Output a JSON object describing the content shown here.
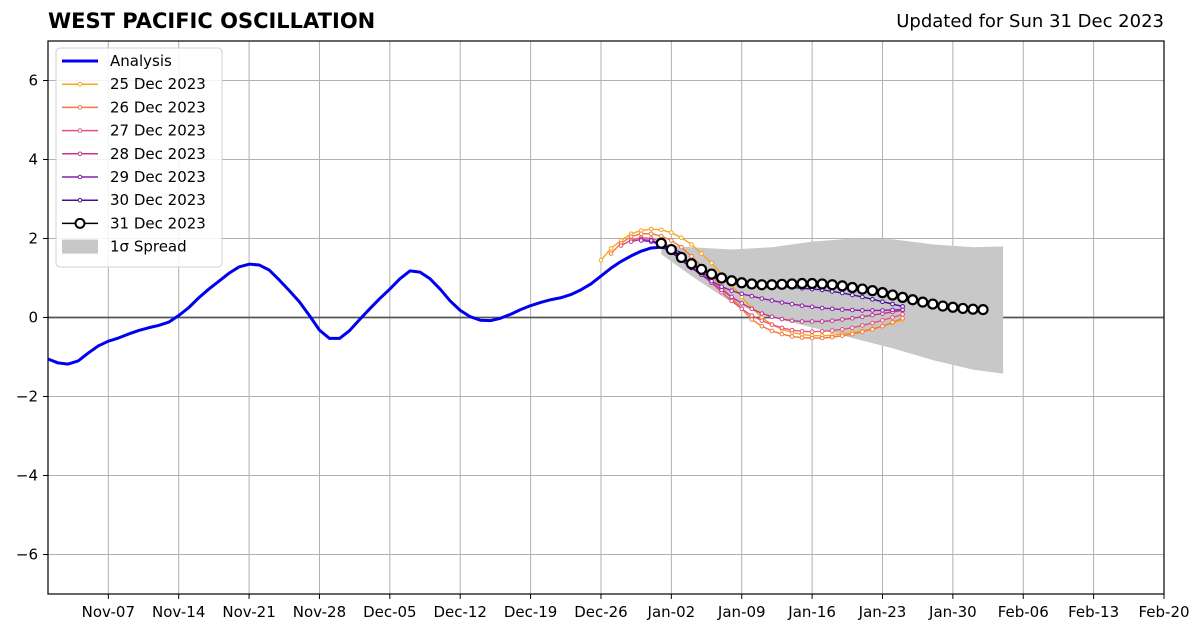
{
  "page": {
    "title": "WEST PACIFIC OSCILLATION",
    "updated": "Updated for Sun 31 Dec 2023"
  },
  "chart_data": {
    "type": "line",
    "title": "WEST PACIFIC OSCILLATION",
    "xlabel": "",
    "ylabel": "",
    "x_axis": {
      "start_date": "2023-11-01",
      "end_date": "2024-02-20",
      "tick_labels": [
        "Nov-07",
        "Nov-14",
        "Nov-21",
        "Nov-28",
        "Dec-05",
        "Dec-12",
        "Dec-19",
        "Dec-26",
        "Jan-02",
        "Jan-09",
        "Jan-16",
        "Jan-23",
        "Jan-30",
        "Feb-06",
        "Feb-13",
        "Feb-20"
      ],
      "tick_dates": [
        "2023-11-07",
        "2023-11-14",
        "2023-11-21",
        "2023-11-28",
        "2023-12-05",
        "2023-12-12",
        "2023-12-19",
        "2023-12-26",
        "2024-01-02",
        "2024-01-09",
        "2024-01-16",
        "2024-01-23",
        "2024-01-30",
        "2024-02-06",
        "2024-02-13",
        "2024-02-20"
      ]
    },
    "ylim": [
      -7,
      7
    ],
    "y_ticks": [
      -6,
      -4,
      -2,
      0,
      2,
      4,
      6
    ],
    "y_tick_labels": [
      "−6",
      "−4",
      "−2",
      "0",
      "2",
      "4",
      "6"
    ],
    "grid": true,
    "legend_position": "top-left",
    "colors": {
      "analysis": "#0000ee",
      "spread": "#c8c8c8",
      "forecast_31": "#000000"
    },
    "analysis": {
      "name": "Analysis",
      "start_date": "2023-11-01",
      "values": [
        -1.05,
        -1.15,
        -1.18,
        -1.1,
        -0.9,
        -0.72,
        -0.6,
        -0.52,
        -0.42,
        -0.33,
        -0.26,
        -0.2,
        -0.12,
        0.05,
        0.25,
        0.5,
        0.72,
        0.92,
        1.12,
        1.28,
        1.35,
        1.33,
        1.2,
        0.95,
        0.68,
        0.4,
        0.05,
        -0.32,
        -0.53,
        -0.53,
        -0.33,
        -0.05,
        0.22,
        0.48,
        0.72,
        0.98,
        1.18,
        1.15,
        0.98,
        0.72,
        0.42,
        0.18,
        0.02,
        -0.07,
        -0.08,
        -0.02,
        0.08,
        0.2,
        0.3,
        0.38,
        0.45,
        0.5,
        0.58,
        0.7,
        0.85,
        1.05,
        1.25,
        1.42,
        1.56,
        1.68,
        1.76,
        1.78,
        1.72,
        1.62
      ]
    },
    "spread": {
      "name": "1σ Spread",
      "upper": [
        [
          "2024-01-01",
          1.85
        ],
        [
          "2024-01-04",
          1.78
        ],
        [
          "2024-01-08",
          1.72
        ],
        [
          "2024-01-12",
          1.78
        ],
        [
          "2024-01-16",
          1.92
        ],
        [
          "2024-01-20",
          2.0
        ],
        [
          "2024-01-24",
          1.98
        ],
        [
          "2024-01-28",
          1.85
        ],
        [
          "2024-02-01",
          1.78
        ],
        [
          "2024-02-04",
          1.8
        ]
      ],
      "lower": [
        [
          "2024-02-04",
          -1.42
        ],
        [
          "2024-02-01",
          -1.32
        ],
        [
          "2024-01-28",
          -1.08
        ],
        [
          "2024-01-24",
          -0.78
        ],
        [
          "2024-01-20",
          -0.52
        ],
        [
          "2024-01-16",
          -0.25
        ],
        [
          "2024-01-12",
          0.0
        ],
        [
          "2024-01-08",
          0.38
        ],
        [
          "2024-01-04",
          1.05
        ],
        [
          "2024-01-01",
          1.6
        ]
      ]
    },
    "series": [
      {
        "name": "25 Dec 2023",
        "color": "#f5a623",
        "start_date": "2023-12-26",
        "values": [
          1.45,
          1.75,
          1.95,
          2.12,
          2.2,
          2.24,
          2.22,
          2.15,
          2.02,
          1.85,
          1.62,
          1.38,
          1.1,
          0.82,
          0.52,
          0.24,
          0.0,
          -0.18,
          -0.3,
          -0.38,
          -0.43,
          -0.46,
          -0.46,
          -0.45,
          -0.42,
          -0.38,
          -0.34,
          -0.28,
          -0.22,
          -0.14,
          -0.05
        ]
      },
      {
        "name": "26 Dec 2023",
        "color": "#f47a3d",
        "start_date": "2023-12-27",
        "values": [
          1.62,
          1.88,
          2.05,
          2.12,
          2.12,
          2.06,
          1.95,
          1.78,
          1.55,
          1.3,
          1.05,
          0.78,
          0.5,
          0.22,
          -0.05,
          -0.22,
          -0.34,
          -0.42,
          -0.48,
          -0.51,
          -0.52,
          -0.52,
          -0.5,
          -0.46,
          -0.42,
          -0.36,
          -0.3,
          -0.22,
          -0.12,
          -0.02
        ]
      },
      {
        "name": "27 Dec 2023",
        "color": "#e3567a",
        "start_date": "2023-12-28",
        "values": [
          1.82,
          1.96,
          2.02,
          2.0,
          1.92,
          1.78,
          1.58,
          1.35,
          1.12,
          0.88,
          0.64,
          0.42,
          0.22,
          0.05,
          -0.08,
          -0.18,
          -0.26,
          -0.32,
          -0.35,
          -0.36,
          -0.35,
          -0.33,
          -0.3,
          -0.26,
          -0.2,
          -0.14,
          -0.07,
          0.0,
          0.08
        ]
      },
      {
        "name": "28 Dec 2023",
        "color": "#c0398f",
        "start_date": "2023-12-29",
        "values": [
          1.92,
          1.98,
          1.95,
          1.86,
          1.7,
          1.5,
          1.28,
          1.08,
          0.88,
          0.7,
          0.52,
          0.36,
          0.22,
          0.1,
          0.02,
          -0.04,
          -0.08,
          -0.1,
          -0.1,
          -0.1,
          -0.08,
          -0.05,
          -0.02,
          0.02,
          0.06,
          0.1,
          0.14,
          0.18
        ]
      },
      {
        "name": "29 Dec 2023",
        "color": "#8f1eac",
        "start_date": "2023-12-30",
        "values": [
          1.95,
          1.92,
          1.82,
          1.66,
          1.45,
          1.25,
          1.08,
          0.92,
          0.78,
          0.68,
          0.6,
          0.54,
          0.48,
          0.43,
          0.38,
          0.34,
          0.3,
          0.27,
          0.24,
          0.22,
          0.2,
          0.19,
          0.18,
          0.18,
          0.18,
          0.19,
          0.2
        ]
      },
      {
        "name": "30 Dec 2023",
        "color": "#4b0c9a",
        "start_date": "2023-12-31",
        "values": [
          1.95,
          1.85,
          1.65,
          1.45,
          1.26,
          1.12,
          1.02,
          0.95,
          0.9,
          0.86,
          0.84,
          0.82,
          0.8,
          0.78,
          0.76,
          0.74,
          0.72,
          0.7,
          0.66,
          0.62,
          0.57,
          0.52,
          0.46,
          0.4,
          0.34,
          0.28
        ]
      },
      {
        "name": "31 Dec 2023",
        "color": "#000000",
        "start_date": "2024-01-01",
        "marker": "open-circle",
        "values": [
          1.88,
          1.72,
          1.52,
          1.36,
          1.22,
          1.1,
          1.0,
          0.93,
          0.88,
          0.85,
          0.83,
          0.83,
          0.84,
          0.85,
          0.86,
          0.86,
          0.85,
          0.83,
          0.8,
          0.76,
          0.72,
          0.68,
          0.63,
          0.57,
          0.51,
          0.45,
          0.39,
          0.34,
          0.29,
          0.26,
          0.23,
          0.21,
          0.2
        ]
      }
    ]
  }
}
